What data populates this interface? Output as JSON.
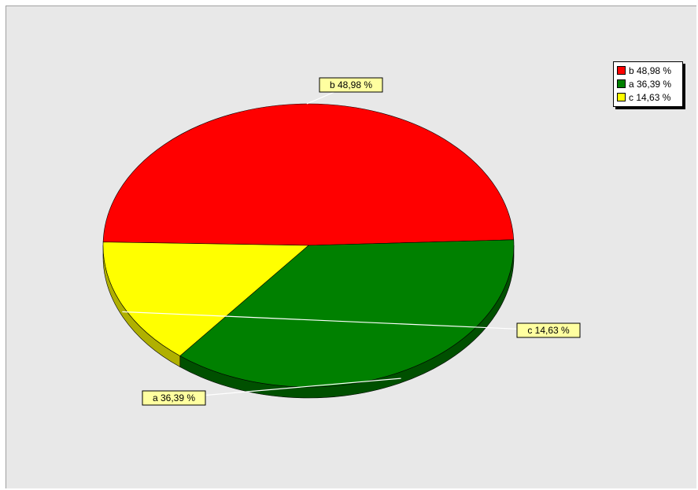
{
  "chart_data": {
    "type": "pie",
    "title": "",
    "slices": [
      {
        "name": "b",
        "value": 48.98,
        "label": "b 48,98 %",
        "color": "#ff0000",
        "side_color": "#a00000"
      },
      {
        "name": "a",
        "value": 36.39,
        "label": "a 36,39 %",
        "color": "#008000",
        "side_color": "#005000"
      },
      {
        "name": "c",
        "value": 14.63,
        "label": "c 14,63 %",
        "color": "#ffff00",
        "side_color": "#b0b000"
      }
    ],
    "legend": {
      "position": "top-right",
      "entries": [
        "b 48,98 %",
        "a 36,39 %",
        "c 14,63 %"
      ]
    },
    "style": {
      "three_d": true,
      "label_background": "#ffffa0",
      "background": "#e8e8e8"
    }
  }
}
